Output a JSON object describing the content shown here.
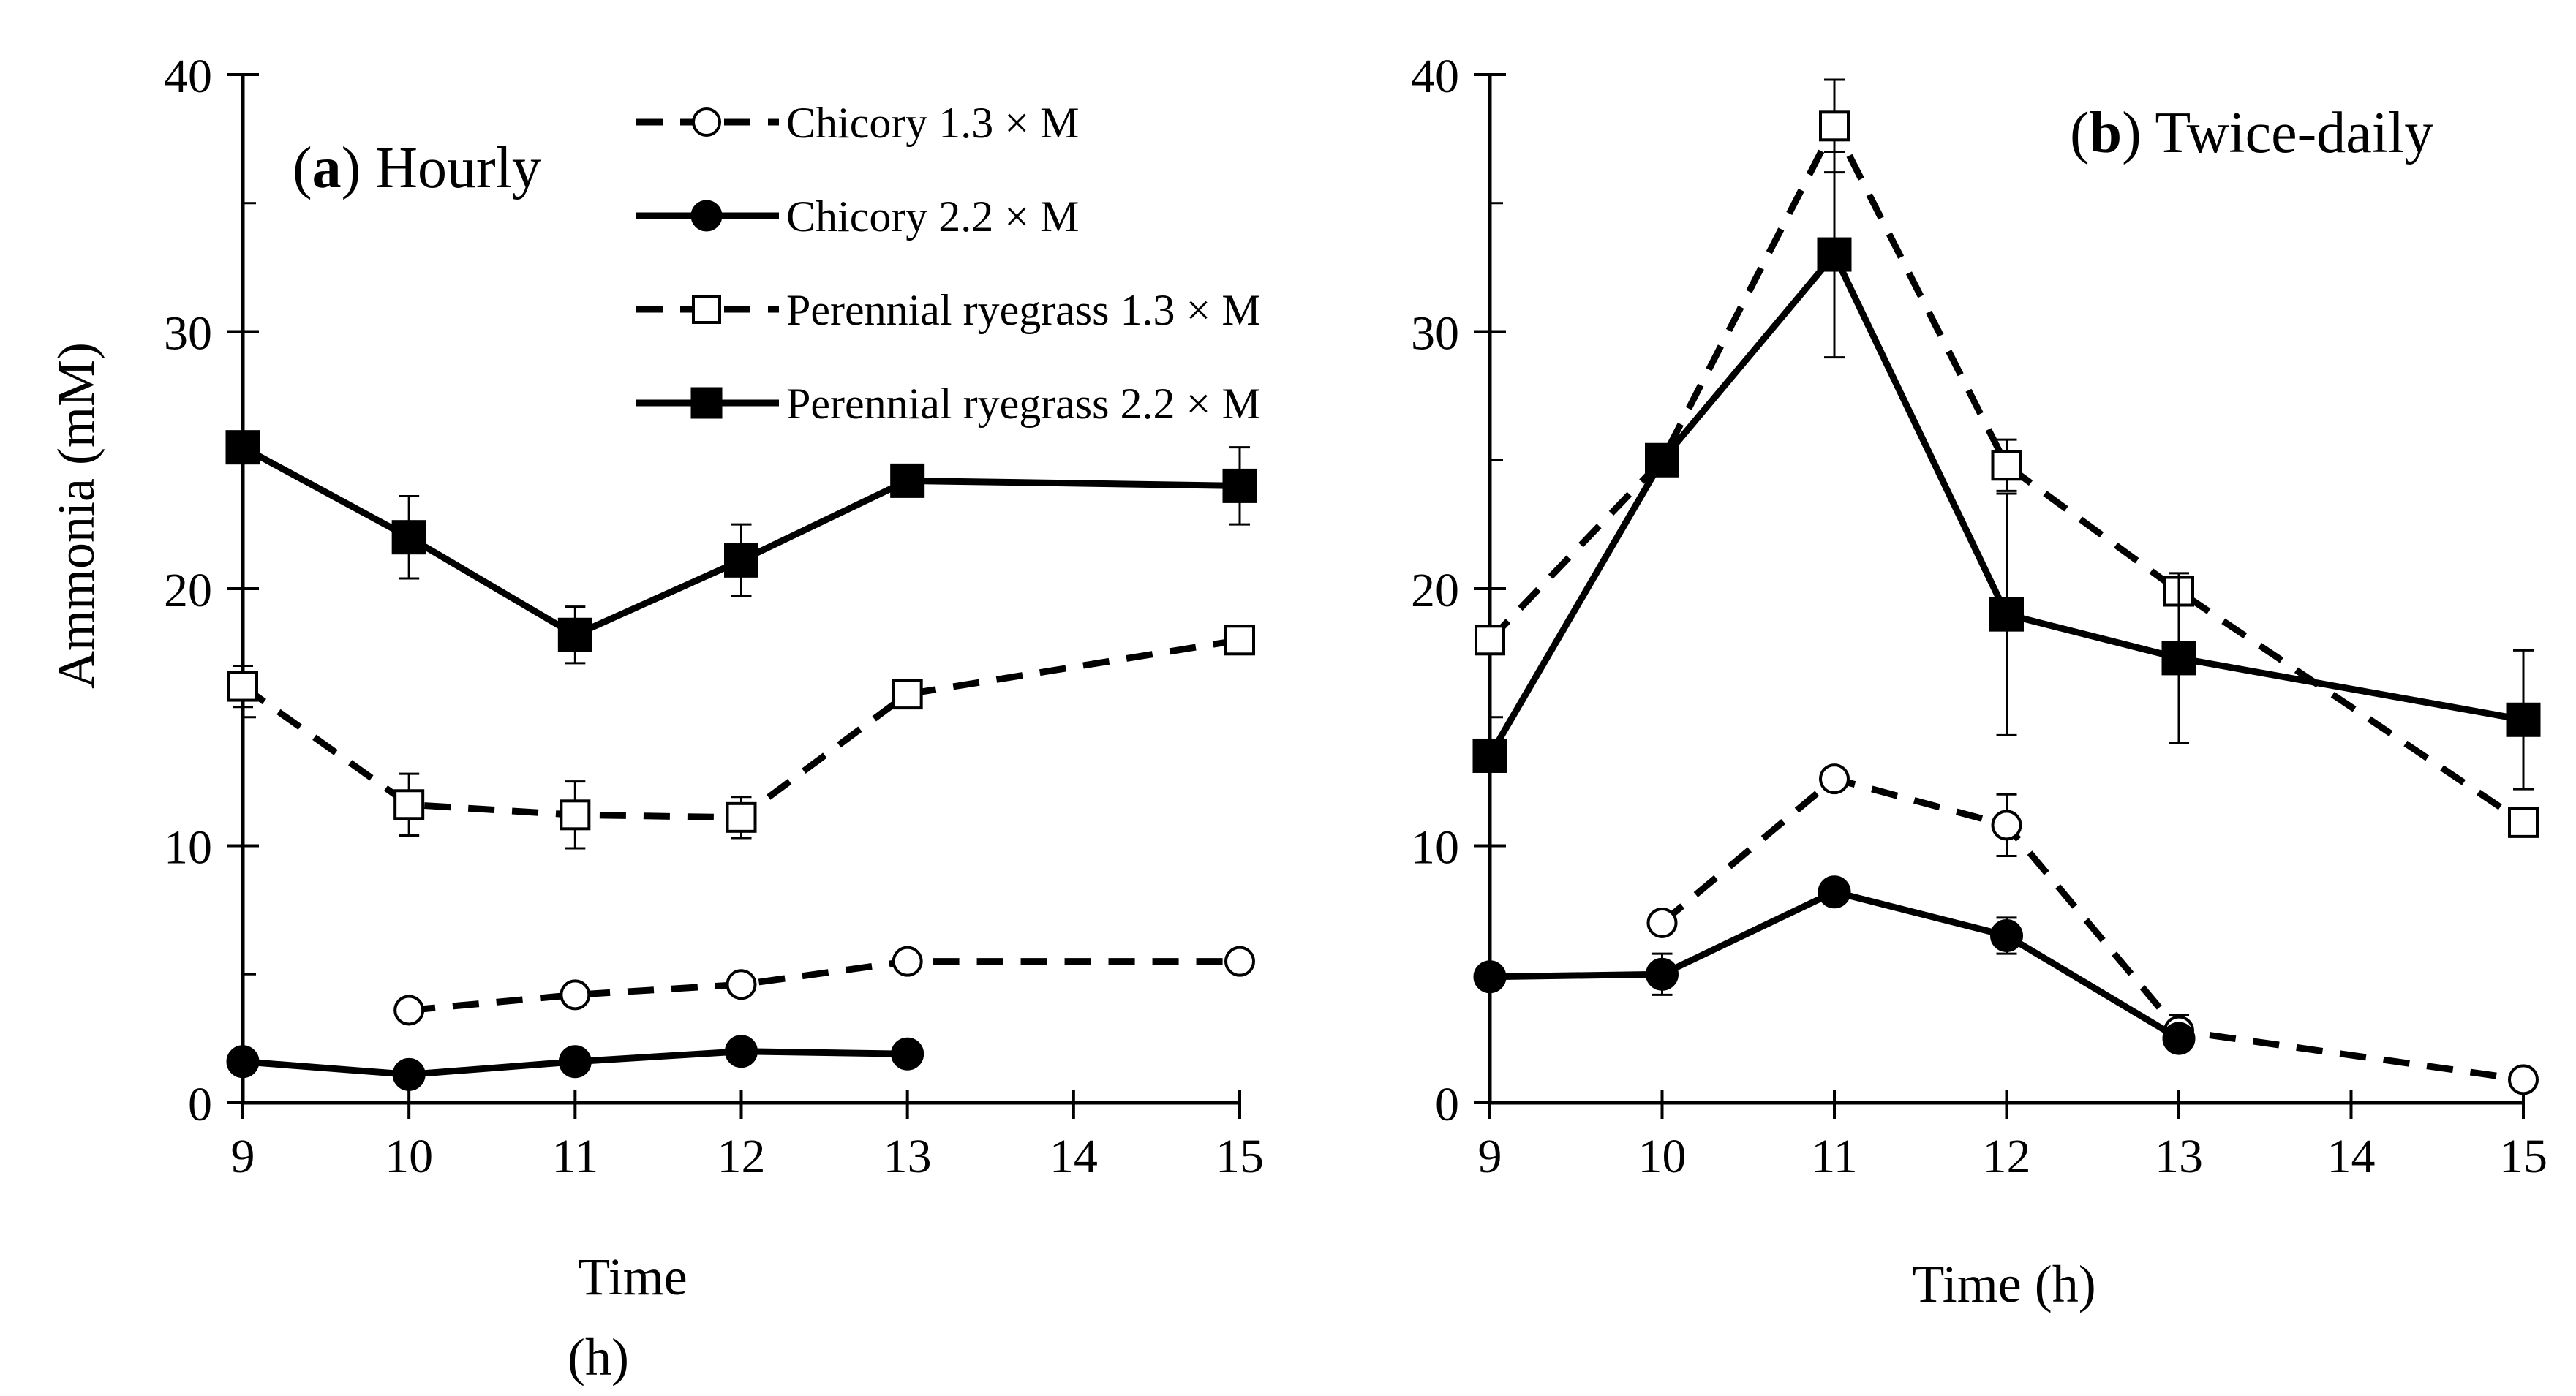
{
  "panels": [
    {
      "panel_id": "a",
      "title_letter": "a",
      "title_text": "Hourly",
      "xlabel_line1": "Time",
      "xlabel_line2": "(h)",
      "ylabel": "Ammonia (mM)"
    },
    {
      "panel_id": "b",
      "title_letter": "b",
      "title_text": "Twice-daily",
      "xlabel_line1": "Time (h)",
      "xlabel_line2": "",
      "ylabel": ""
    }
  ],
  "legend": {
    "placement": "top-right of panel a",
    "entries": [
      {
        "label": "Chicory 1.3 × M",
        "marker": "circle-open",
        "line": "dashed"
      },
      {
        "label": "Chicory 2.2 × M",
        "marker": "circle-filled",
        "line": "solid"
      },
      {
        "label": "Perennial ryegrass 1.3 × M",
        "marker": "square-open",
        "line": "dashed"
      },
      {
        "label": "Perennial ryegrass 2.2 × M",
        "marker": "square-filled",
        "line": "solid"
      }
    ]
  },
  "chart_data": [
    {
      "type": "line",
      "panel": "a",
      "title": "(a) Hourly",
      "xlabel": "Time (h)",
      "ylabel": "Ammonia (mM)",
      "xlim": [
        9,
        15
      ],
      "ylim": [
        0,
        40
      ],
      "xticks": [
        9,
        10,
        11,
        12,
        13,
        14,
        15
      ],
      "yticks": [
        0,
        10,
        20,
        30,
        40
      ],
      "grid": false,
      "series": [
        {
          "name": "Chicory 1.3 × M",
          "marker": "circle-open",
          "line": "dashed",
          "x": [
            10,
            11,
            12,
            13,
            15
          ],
          "y": [
            3.6,
            4.2,
            4.6,
            5.5,
            5.5
          ],
          "err": [
            0.3,
            0.3,
            0.3,
            0.3,
            0.3
          ]
        },
        {
          "name": "Chicory 2.2 × M",
          "marker": "circle-filled",
          "line": "solid",
          "x": [
            9,
            10,
            11,
            12,
            13
          ],
          "y": [
            1.6,
            1.1,
            1.6,
            2.0,
            1.9
          ],
          "err": [
            0.2,
            0.2,
            0.2,
            0.2,
            0.2
          ]
        },
        {
          "name": "Perennial ryegrass 1.3 × M",
          "marker": "square-open",
          "line": "dashed",
          "x": [
            9,
            10,
            11,
            12,
            13,
            15
          ],
          "y": [
            16.2,
            11.6,
            11.2,
            11.1,
            15.9,
            18.0
          ],
          "err": [
            0.8,
            1.2,
            1.3,
            0.8,
            0.4,
            0.4
          ]
        },
        {
          "name": "Perennial ryegrass 2.2 × M",
          "marker": "square-filled",
          "line": "solid",
          "x": [
            9,
            10,
            11,
            12,
            13,
            15
          ],
          "y": [
            25.5,
            22.0,
            18.2,
            21.1,
            24.2,
            24.0
          ],
          "err": [
            0.5,
            1.6,
            1.1,
            1.4,
            0.4,
            1.5
          ]
        }
      ]
    },
    {
      "type": "line",
      "panel": "b",
      "title": "(b) Twice-daily",
      "xlabel": "Time (h)",
      "ylabel": "Ammonia (mM)",
      "xlim": [
        9,
        15
      ],
      "ylim": [
        0,
        40
      ],
      "xticks": [
        9,
        10,
        11,
        12,
        13,
        14,
        15
      ],
      "yticks": [
        0,
        10,
        20,
        30,
        40
      ],
      "grid": false,
      "series": [
        {
          "name": "Chicory 1.3 × M",
          "marker": "circle-open",
          "line": "dashed",
          "x": [
            10,
            11,
            12,
            13,
            15
          ],
          "y": [
            7.0,
            12.6,
            10.8,
            2.8,
            0.9
          ],
          "err": [
            0.3,
            0.3,
            1.2,
            0.6,
            0.2
          ]
        },
        {
          "name": "Chicory 2.2 × M",
          "marker": "circle-filled",
          "line": "solid",
          "x": [
            9,
            10,
            11,
            12,
            13
          ],
          "y": [
            4.9,
            5.0,
            8.2,
            6.5,
            2.5
          ],
          "err": [
            0.3,
            0.8,
            0.4,
            0.7,
            0.4
          ]
        },
        {
          "name": "Perennial ryegrass 1.3 × M",
          "marker": "square-open",
          "line": "dashed",
          "x": [
            9,
            10,
            11,
            12,
            13,
            15
          ],
          "y": [
            18.0,
            25.0,
            38.0,
            24.8,
            19.9,
            10.9
          ],
          "err": [
            0.3,
            0.4,
            1.8,
            1.0,
            0.5,
            0.3
          ]
        },
        {
          "name": "Perennial ryegrass 2.2 × M",
          "marker": "square-filled",
          "line": "solid",
          "x": [
            9,
            10,
            11,
            12,
            13,
            15
          ],
          "y": [
            13.5,
            25.0,
            33.0,
            19.0,
            17.3,
            14.9
          ],
          "err": [
            0.3,
            0.5,
            4.0,
            4.7,
            3.3,
            2.7
          ]
        }
      ]
    }
  ]
}
